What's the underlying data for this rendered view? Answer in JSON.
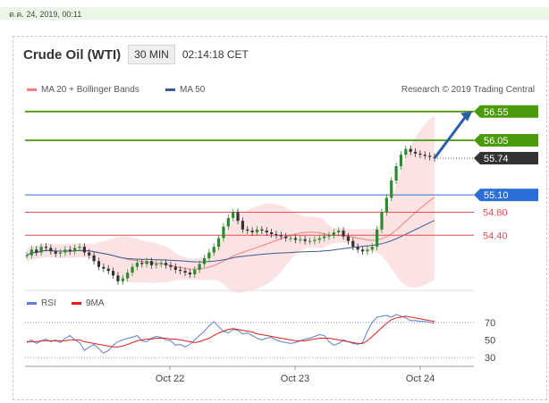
{
  "timestamp": "ต.ค. 24, 2019, 00:11",
  "instrument": "Crude Oil (WTI)",
  "timeframe": "30 MIN",
  "clock": "02:14:18 CET",
  "legend": {
    "ma20": "MA 20 + Bollinger Bands",
    "ma50": "MA 50"
  },
  "source": "Research © 2019 Trading Central",
  "rsi_legend": {
    "rsi": "RSI",
    "ma9": "9MA"
  },
  "colors": {
    "up": "#2f8a2f",
    "down": "#333333",
    "ma20": "#f08080",
    "ma50": "#3b5998",
    "resistance": "#4a9a0c",
    "support": "#e05050",
    "pivot": "#2b6fd6",
    "arrow": "#2a5ea8"
  },
  "chart_data": [
    {
      "type": "candlestick",
      "title": "Crude Oil (WTI)",
      "x_tick_labels": [
        "Oct 22",
        "Oct 23",
        "Oct 24"
      ],
      "ylim": [
        53.55,
        56.78
      ],
      "close_series": [
        54.05,
        54.15,
        54.1,
        54.2,
        54.18,
        54.12,
        54.08,
        54.1,
        54.15,
        54.12,
        54.18,
        54.2,
        54.1,
        54.05,
        53.95,
        53.85,
        53.82,
        53.78,
        53.7,
        53.6,
        53.65,
        53.75,
        53.85,
        53.92,
        53.9,
        53.95,
        53.88,
        53.9,
        53.92,
        53.88,
        53.85,
        53.8,
        53.78,
        53.75,
        53.72,
        53.8,
        53.9,
        54.0,
        54.1,
        54.2,
        54.35,
        54.55,
        54.7,
        54.8,
        54.65,
        54.5,
        54.48,
        54.45,
        54.5,
        54.48,
        54.45,
        54.42,
        54.4,
        54.38,
        54.35,
        54.35,
        54.32,
        54.33,
        54.3,
        54.3,
        54.32,
        54.35,
        54.38,
        54.4,
        54.45,
        54.48,
        54.38,
        54.3,
        54.2,
        54.15,
        54.12,
        54.15,
        54.2,
        54.5,
        54.8,
        55.05,
        55.35,
        55.6,
        55.8,
        55.9,
        55.85,
        55.82,
        55.8,
        55.78,
        55.76,
        55.74
      ],
      "price_levels": [
        {
          "label": "56.55",
          "value": 56.55,
          "kind": "resistance"
        },
        {
          "label": "56.05",
          "value": 56.05,
          "kind": "resistance"
        },
        {
          "label": "55.74",
          "value": 55.74,
          "kind": "last"
        },
        {
          "label": "55.10",
          "value": 55.1,
          "kind": "pivot"
        },
        {
          "label": "54.80",
          "value": 54.8,
          "kind": "support"
        },
        {
          "label": "54.40",
          "value": 54.4,
          "kind": "support"
        }
      ],
      "indicators": [
        "MA 20 + Bollinger Bands",
        "MA 50"
      ]
    },
    {
      "type": "line",
      "title": "RSI",
      "ylim": [
        22,
        85
      ],
      "y_ticks": [
        70,
        50,
        30
      ],
      "series": [
        {
          "name": "RSI",
          "values": [
            47,
            50,
            46,
            49,
            51,
            48,
            50,
            47,
            52,
            55,
            50,
            47,
            38,
            42,
            45,
            40,
            35,
            38,
            44,
            48,
            50,
            52,
            53,
            55,
            49,
            48,
            52,
            54,
            53,
            50,
            49,
            44,
            45,
            42,
            45,
            50,
            55,
            60,
            66,
            71,
            65,
            60,
            58,
            62,
            61,
            57,
            58,
            55,
            52,
            50,
            52,
            53,
            50,
            48,
            47,
            46,
            47,
            49,
            51,
            52,
            54,
            56,
            55,
            48,
            44,
            46,
            50,
            48,
            46,
            45,
            47,
            60,
            70,
            76,
            77,
            78,
            76,
            79,
            77,
            75,
            72,
            72,
            71,
            71,
            70,
            69
          ]
        },
        {
          "name": "9MA",
          "values": [
            48,
            48,
            48,
            49,
            49,
            49,
            49,
            49,
            49,
            50,
            50,
            50,
            48,
            47,
            46,
            45,
            44,
            43,
            42,
            42,
            43,
            45,
            47,
            49,
            50,
            51,
            51,
            52,
            52,
            52,
            51,
            51,
            50,
            49,
            48,
            47,
            48,
            50,
            52,
            55,
            58,
            60,
            62,
            63,
            62,
            61,
            60,
            59,
            57,
            56,
            55,
            54,
            53,
            52,
            51,
            50,
            49,
            49,
            49,
            50,
            51,
            52,
            52,
            52,
            51,
            50,
            49,
            48,
            47,
            46,
            46,
            49,
            54,
            59,
            64,
            69,
            73,
            75,
            76,
            77,
            76,
            75,
            74,
            73,
            72,
            71
          ]
        }
      ]
    }
  ]
}
